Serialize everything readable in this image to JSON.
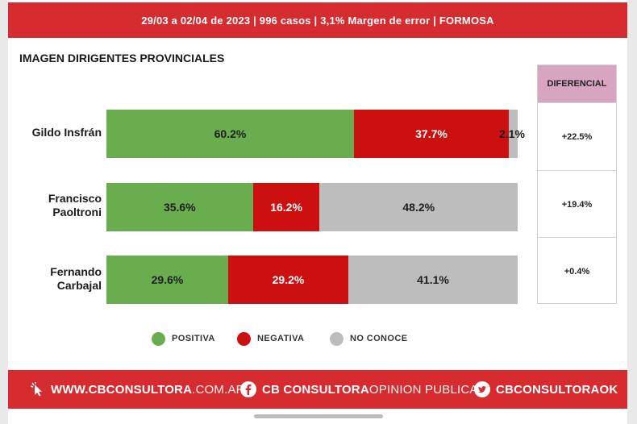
{
  "header": {
    "banner_text": "29/03 a 02/04 de 2023 | 996 casos   |  3,1% Margen de error   | FORMOSA"
  },
  "chart_data": {
    "type": "bar",
    "stacked": true,
    "orientation": "horizontal",
    "title": "IMAGEN DIRIGENTES PROVINCIALES",
    "categories": [
      "Gildo Insfrán",
      "Francisco Paoltroni",
      "Fernando Carbajal"
    ],
    "series": [
      {
        "name": "POSITIVA",
        "color": "#6aad4e",
        "values": [
          60.2,
          35.6,
          29.6
        ],
        "labels": [
          "60.2%",
          "35.6%",
          "29.6%"
        ]
      },
      {
        "name": "NEGATIVA",
        "color": "#cc0f0f",
        "values": [
          37.7,
          16.2,
          29.2
        ],
        "labels": [
          "37.7%",
          "16.2%",
          "29.2%"
        ]
      },
      {
        "name": "NO CONOCE",
        "color": "#bdbdbd",
        "values": [
          2.1,
          48.2,
          41.1
        ],
        "labels": [
          "2.1%",
          "48.2%",
          "41.1%"
        ]
      }
    ],
    "diferencial": {
      "header": "DIFERENCIAL",
      "values": [
        "+22.5%",
        "+19.4%",
        "+0.4%"
      ]
    },
    "legend_position": "bottom"
  },
  "rows": [
    {
      "line1": "Gildo Insfrán",
      "line2": ""
    },
    {
      "line1": "Francisco",
      "line2": "Paoltroni"
    },
    {
      "line1": "Fernando",
      "line2": "Carbajal"
    }
  ],
  "footer": {
    "web_bold": "WWW.CBCONSULTORA",
    "web_light": ".COM.AR",
    "fb_bold": "CB CONSULTORA",
    "fb_light": " OPINION PUBLICA",
    "tw_bold": "CBCONSULTORAOK",
    "icons": [
      "cursor-click-icon",
      "facebook-icon",
      "twitter-icon"
    ]
  }
}
